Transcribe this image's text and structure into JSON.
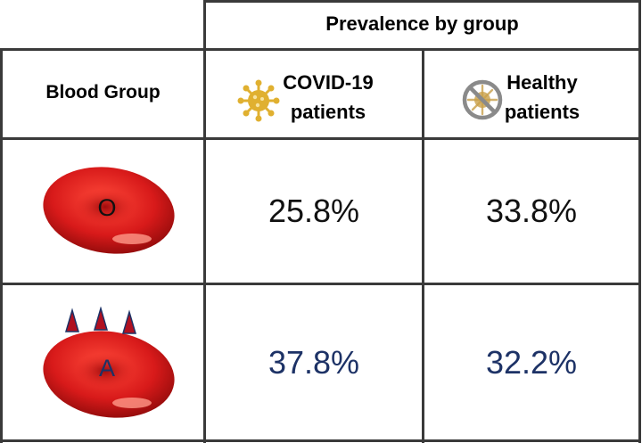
{
  "table": {
    "group_header": "Prevalence by group",
    "column_headers": {
      "blood_group": "Blood Group",
      "covid_line1": "COVID-19",
      "covid_line2": "patients",
      "healthy_line1": "Healthy",
      "healthy_line2": "patients"
    },
    "icons": {
      "covid": "virus-icon",
      "healthy": "no-virus-icon"
    },
    "rows": [
      {
        "group": "O",
        "covid": "25.8%",
        "healthy": "33.8%"
      },
      {
        "group": "A",
        "covid": "37.8%",
        "healthy": "32.2%"
      }
    ]
  },
  "colors": {
    "grid_line": "#3a3a3a",
    "row_a_values": "#1d3266",
    "blood_cell": "#d81a1a",
    "antigen": "#b01020",
    "virus": "#e0b030",
    "no_sign": "#8a8a8a"
  }
}
